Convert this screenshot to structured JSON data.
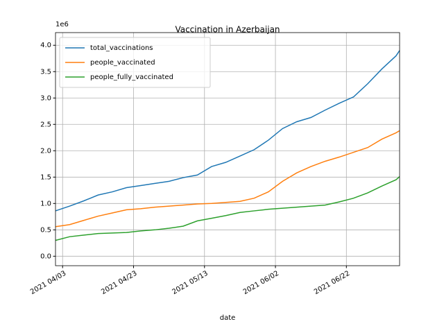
{
  "chart_data": {
    "type": "line",
    "title": "Vaccination in Azerbaijan",
    "x_label": "date",
    "y_offset_label": "1e6",
    "x": [
      "2021-04-01",
      "2021-04-05",
      "2021-04-09",
      "2021-04-13",
      "2021-04-17",
      "2021-04-21",
      "2021-04-25",
      "2021-04-29",
      "2021-05-03",
      "2021-05-07",
      "2021-05-11",
      "2021-05-15",
      "2021-05-19",
      "2021-05-23",
      "2021-05-27",
      "2021-05-31",
      "2021-06-04",
      "2021-06-08",
      "2021-06-12",
      "2021-06-16",
      "2021-06-20",
      "2021-06-24",
      "2021-06-28",
      "2021-07-02",
      "2021-07-06",
      "2021-07-07"
    ],
    "series": [
      {
        "name": "total_vaccinations",
        "color": "#1f77b4",
        "values": [
          0.86,
          0.95,
          1.05,
          1.16,
          1.22,
          1.3,
          1.34,
          1.38,
          1.42,
          1.49,
          1.54,
          1.7,
          1.78,
          1.9,
          2.02,
          2.2,
          2.42,
          2.55,
          2.63,
          2.77,
          2.9,
          3.02,
          3.27,
          3.55,
          3.8,
          3.9
        ]
      },
      {
        "name": "people_vaccinated",
        "color": "#ff7f0e",
        "values": [
          0.56,
          0.6,
          0.68,
          0.76,
          0.82,
          0.88,
          0.9,
          0.93,
          0.95,
          0.97,
          0.99,
          1.0,
          1.02,
          1.04,
          1.1,
          1.22,
          1.42,
          1.58,
          1.7,
          1.8,
          1.88,
          1.97,
          2.06,
          2.22,
          2.34,
          2.38
        ]
      },
      {
        "name": "people_fully_vaccinated",
        "color": "#2ca02c",
        "values": [
          0.3,
          0.37,
          0.4,
          0.43,
          0.44,
          0.45,
          0.48,
          0.5,
          0.53,
          0.57,
          0.67,
          0.72,
          0.77,
          0.83,
          0.86,
          0.89,
          0.91,
          0.93,
          0.95,
          0.97,
          1.03,
          1.1,
          1.2,
          1.33,
          1.45,
          1.51
        ]
      }
    ],
    "xlim": [
      "2021-04-01",
      "2021-07-07"
    ],
    "xticks": [
      {
        "value": "2021-04-03",
        "label": "2021 04/03"
      },
      {
        "value": "2021-04-23",
        "label": "2021 04/23"
      },
      {
        "value": "2021-05-13",
        "label": "2021 05/13"
      },
      {
        "value": "2021-06-02",
        "label": "2021 06/02"
      },
      {
        "value": "2021-06-22",
        "label": "2021 06/22"
      }
    ],
    "ylim": [
      -0.18,
      4.24
    ],
    "yticks": [
      {
        "value": 0,
        "label": "0.0"
      },
      {
        "value": 0.5,
        "label": "0.5"
      },
      {
        "value": 1,
        "label": "1.0"
      },
      {
        "value": 1.5,
        "label": "1.5"
      },
      {
        "value": 2,
        "label": "2.0"
      },
      {
        "value": 2.5,
        "label": "2.5"
      },
      {
        "value": 3,
        "label": "3.0"
      },
      {
        "value": 3.5,
        "label": "3.5"
      },
      {
        "value": 4,
        "label": "4.0"
      }
    ],
    "grid": true,
    "legend": "upper left"
  }
}
